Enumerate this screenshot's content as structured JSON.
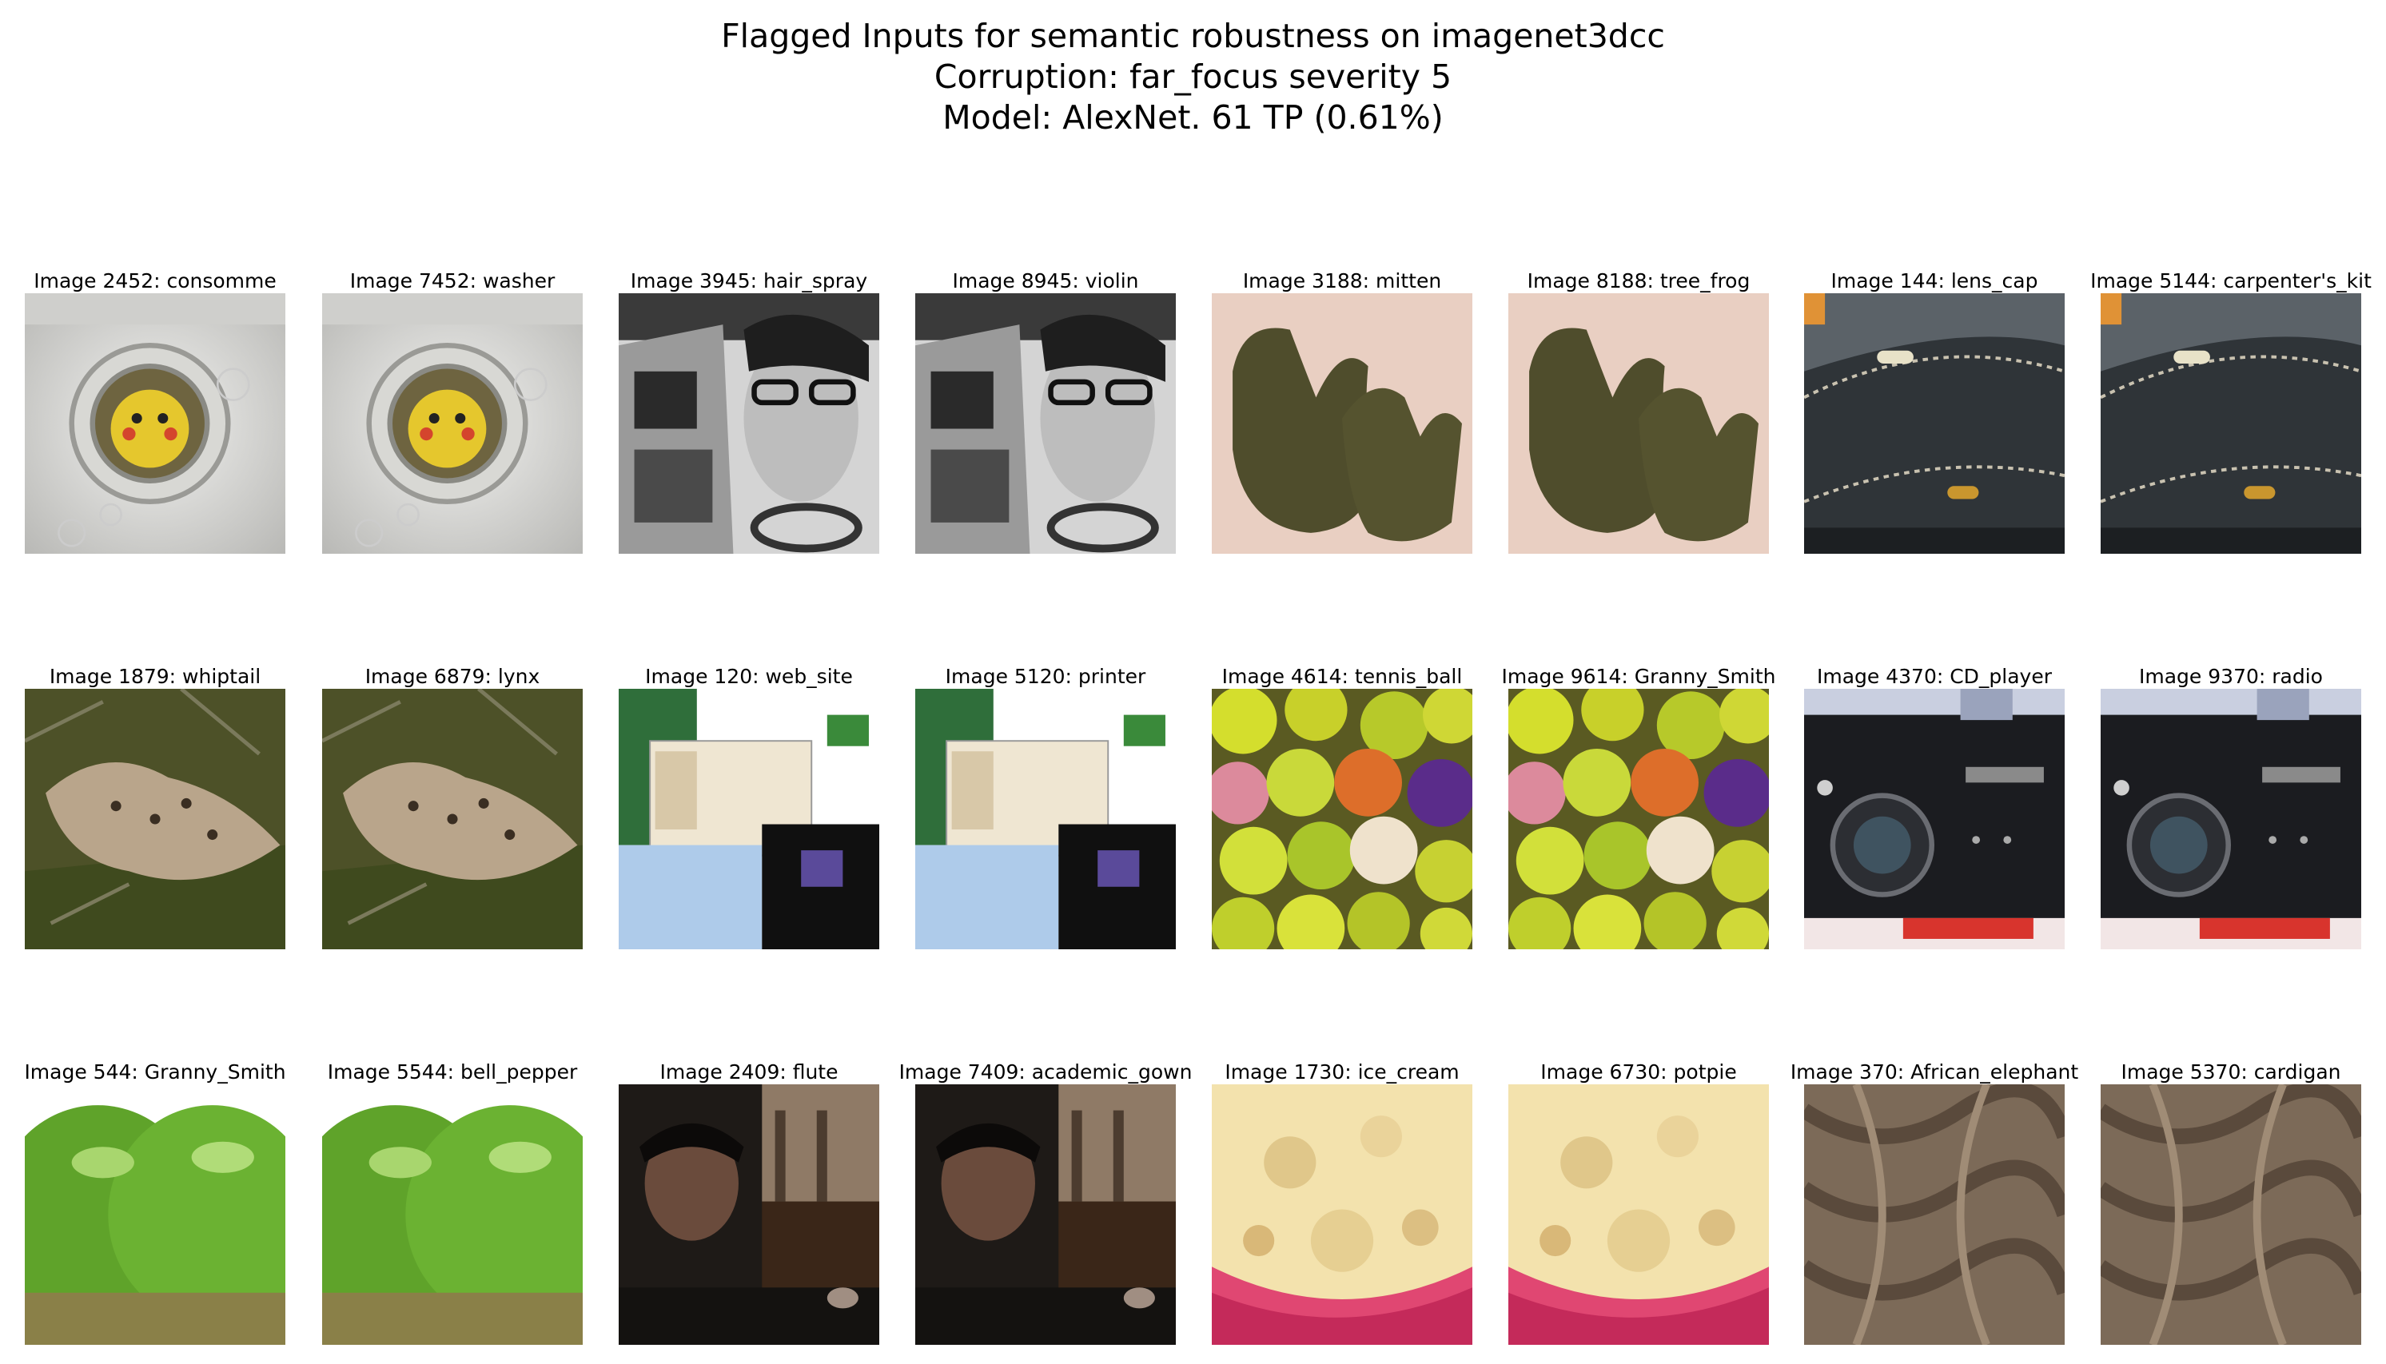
{
  "title_lines": [
    "Flagged Inputs for semantic robustness on imagenet3dcc",
    "Corruption: far_focus severity 5",
    "Model: AlexNet. 61 TP (0.61%)"
  ],
  "rows": [
    [
      {
        "caption": "Image 2452: consomme",
        "scene": "washer"
      },
      {
        "caption": "Image 7452: washer",
        "scene": "washer"
      },
      {
        "caption": "Image 3945: hair_spray",
        "scene": "boombox"
      },
      {
        "caption": "Image 8945: violin",
        "scene": "boombox"
      },
      {
        "caption": "Image 3188: mitten",
        "scene": "mitten"
      },
      {
        "caption": "Image 8188: tree_frog",
        "scene": "mitten"
      },
      {
        "caption": "Image 144: lens_cap",
        "scene": "leather"
      },
      {
        "caption": "Image 5144: carpenter's_kit",
        "scene": "leather"
      }
    ],
    [
      {
        "caption": "Image 1879: whiptail",
        "scene": "cat"
      },
      {
        "caption": "Image 6879: lynx",
        "scene": "cat"
      },
      {
        "caption": "Image 120: web_site",
        "scene": "website"
      },
      {
        "caption": "Image 5120: printer",
        "scene": "website"
      },
      {
        "caption": "Image 4614: tennis_ball",
        "scene": "balls"
      },
      {
        "caption": "Image 9614: Granny_Smith",
        "scene": "balls"
      },
      {
        "caption": "Image 4370: CD_player",
        "scene": "projector"
      },
      {
        "caption": "Image 9370: radio",
        "scene": "projector"
      }
    ],
    [
      {
        "caption": "Image 544: Granny_Smith",
        "scene": "apple"
      },
      {
        "caption": "Image 5544: bell_pepper",
        "scene": "apple"
      },
      {
        "caption": "Image 2409: flute",
        "scene": "portrait"
      },
      {
        "caption": "Image 7409: academic_gown",
        "scene": "portrait"
      },
      {
        "caption": "Image 1730: ice_cream",
        "scene": "icecream"
      },
      {
        "caption": "Image 6730: potpie",
        "scene": "icecream"
      },
      {
        "caption": "Image 370: African_elephant",
        "scene": "knit"
      },
      {
        "caption": "Image 5370: cardigan",
        "scene": "knit"
      }
    ]
  ]
}
